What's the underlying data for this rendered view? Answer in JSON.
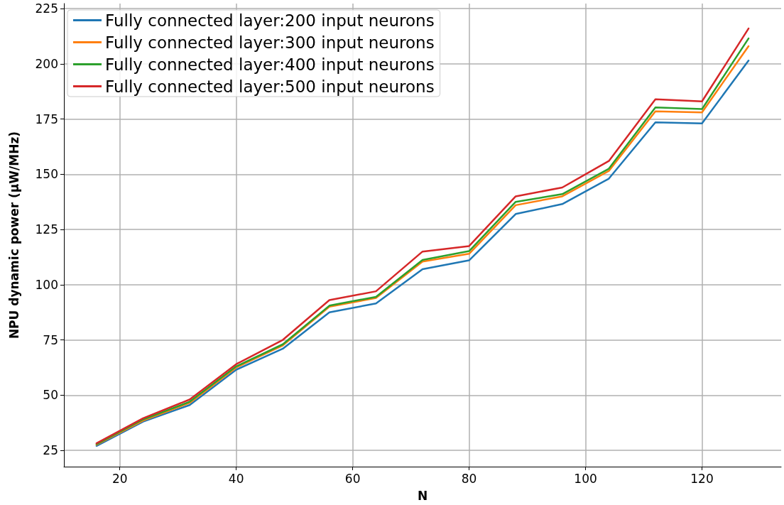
{
  "chart_data": {
    "type": "line",
    "xlabel": "N",
    "ylabel": "NPU dynamic power (μW/MHz)",
    "x": [
      16,
      24,
      32,
      40,
      48,
      56,
      64,
      72,
      80,
      88,
      96,
      104,
      112,
      120,
      128
    ],
    "series": [
      {
        "name": "Fully connected layer:200 input neurons",
        "color": "#1f77b4",
        "values": [
          27,
          38,
          45.5,
          61.5,
          71,
          87.5,
          91.5,
          107,
          111,
          132,
          136.5,
          148,
          173.5,
          173,
          201.5
        ]
      },
      {
        "name": "Fully connected layer:300 input neurons",
        "color": "#ff7f0e",
        "values": [
          27.5,
          38.5,
          46.5,
          62.5,
          72.5,
          90,
          94,
          110.5,
          114,
          136,
          140,
          151.5,
          178.5,
          178,
          208
        ]
      },
      {
        "name": "Fully connected layer:400 input neurons",
        "color": "#2ca02c",
        "values": [
          27.8,
          39,
          47,
          63,
          73,
          90.5,
          94.5,
          111.2,
          115.2,
          137.5,
          141,
          152.5,
          180.3,
          179.5,
          211.5
        ]
      },
      {
        "name": "Fully connected layer:500 input neurons",
        "color": "#d62728",
        "values": [
          28.2,
          39.5,
          48,
          64,
          75,
          93,
          97,
          115,
          117.5,
          140,
          144,
          156,
          184,
          183,
          216
        ]
      }
    ],
    "xlim": [
      10.4,
      133.6
    ],
    "xticks": [
      20,
      40,
      60,
      80,
      100,
      120
    ],
    "ylim": [
      17.6,
      227.3
    ],
    "yticks": [
      25,
      50,
      75,
      100,
      125,
      150,
      175,
      200,
      225
    ],
    "grid": true,
    "legend": "top left",
    "marker": "none",
    "line_style": "solid"
  }
}
